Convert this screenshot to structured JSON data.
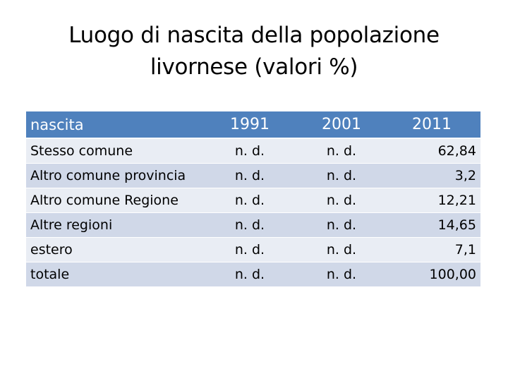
{
  "title": {
    "line1": "Luogo di nascita della popolazione",
    "line2": "livornese  (valori %)"
  },
  "table": {
    "headers": [
      "nascita",
      "1991",
      "2001",
      "2011"
    ],
    "rows": [
      [
        "Stesso comune",
        "n. d.",
        "n. d.",
        "62,84"
      ],
      [
        "Altro comune provincia",
        "n. d.",
        "n. d.",
        "3,2"
      ],
      [
        "Altro comune Regione",
        "n. d.",
        "n. d.",
        "12,21"
      ],
      [
        "Altre regioni",
        "n. d.",
        "n. d.",
        "14,65"
      ],
      [
        "estero",
        "n. d.",
        "n. d.",
        "7,1"
      ],
      [
        "totale",
        "n. d.",
        "n. d.",
        "100,00"
      ]
    ]
  },
  "colors": {
    "header_bg": "#4f81bd",
    "row_light": "#e9edf4",
    "row_dark": "#d0d8e8"
  }
}
